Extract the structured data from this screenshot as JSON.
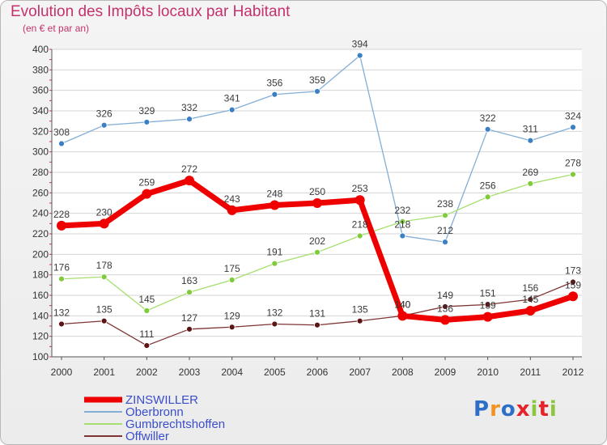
{
  "chart_data": {
    "type": "line",
    "title": "Evolution des Impôts locaux par Habitant",
    "subtitle": "(en € et par an)",
    "x": [
      "2000",
      "2001",
      "2002",
      "2003",
      "2004",
      "2005",
      "2006",
      "2007",
      "2008",
      "2009",
      "2010",
      "2011",
      "2012"
    ],
    "ylim": [
      100,
      400
    ],
    "yticks": [
      100,
      120,
      140,
      160,
      180,
      200,
      220,
      240,
      260,
      280,
      300,
      320,
      340,
      360,
      380,
      400
    ],
    "series": [
      {
        "name": "ZINSWILLER",
        "color": "#ee0000",
        "marker": "#ee0000",
        "width": 7,
        "values": [
          228,
          230,
          259,
          272,
          243,
          248,
          250,
          253,
          140,
          136,
          139,
          145,
          159
        ]
      },
      {
        "name": "Oberbronn",
        "color": "#82aed6",
        "marker": "#3b7fc4",
        "width": 1.3,
        "values": [
          308,
          326,
          329,
          332,
          341,
          356,
          359,
          394,
          218,
          212,
          322,
          311,
          324
        ]
      },
      {
        "name": "Gumbrechtshoffen",
        "color": "#a6df6e",
        "marker": "#7fcb3c",
        "width": 1.3,
        "values": [
          176,
          178,
          145,
          163,
          175,
          191,
          202,
          218,
          232,
          238,
          256,
          269,
          278
        ]
      },
      {
        "name": "Offwiller",
        "color": "#7e3434",
        "marker": "#5c1414",
        "width": 1.3,
        "values": [
          132,
          135,
          111,
          127,
          129,
          132,
          131,
          135,
          140,
          149,
          151,
          156,
          173
        ]
      }
    ],
    "legend_position": "bottom-left"
  },
  "logo": {
    "letters": [
      "P",
      "r",
      "o",
      "x",
      "i",
      "t",
      "i"
    ],
    "colors": [
      "#2d6fc8",
      "#f29221",
      "#2d6fc8",
      "#e6232a",
      "#8cc63e",
      "#e6232a",
      "#8cc63e"
    ]
  }
}
